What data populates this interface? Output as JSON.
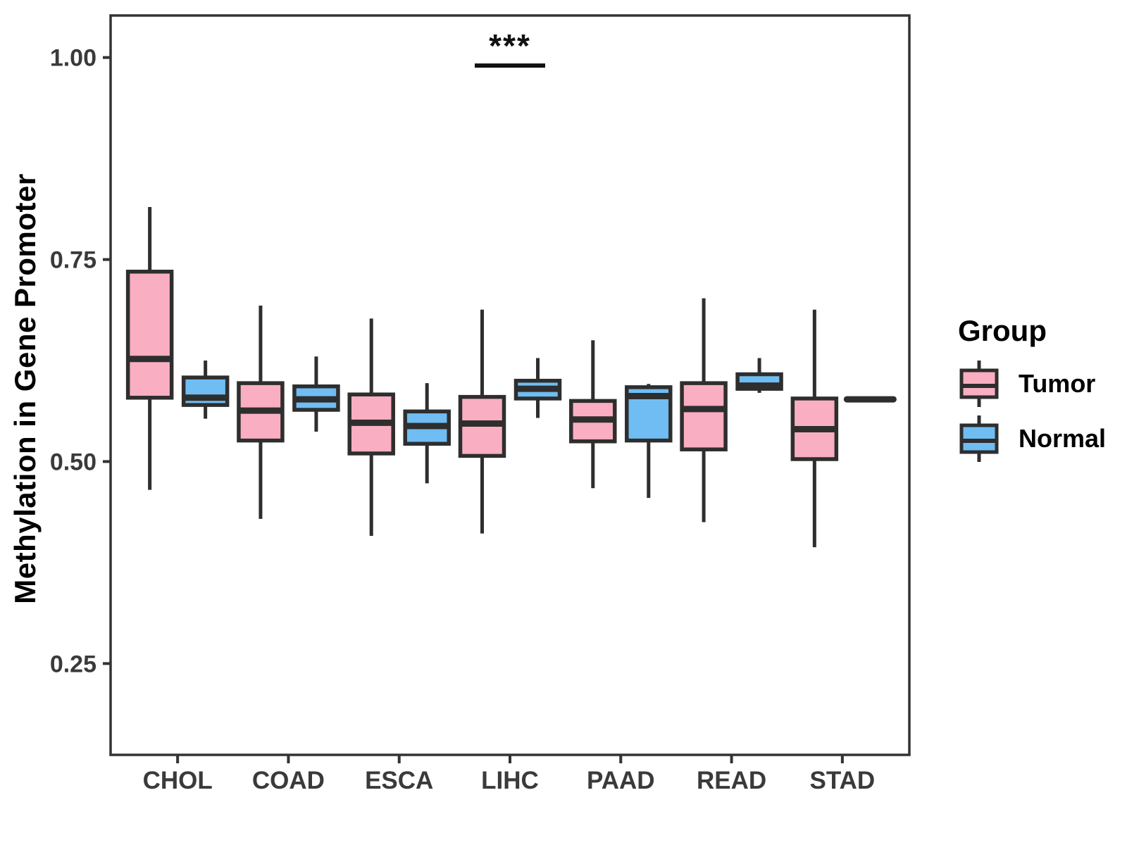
{
  "figure": {
    "background": "#FFFFFF"
  },
  "colors": {
    "tumor_fill": "#F9AFC1",
    "normal_fill": "#6FBDF2",
    "box_stroke": "#2E2E2E",
    "axis_line": "#333333",
    "tick_text": "#3A3A3A",
    "title_text": "#000000",
    "significance": "#111111"
  },
  "legend": {
    "title": "Group",
    "items": [
      {
        "label": "Tumor",
        "color_key": "tumor_fill"
      },
      {
        "label": "Normal",
        "color_key": "normal_fill"
      }
    ]
  },
  "chart_data": {
    "type": "boxplot",
    "title": "",
    "xlabel": "",
    "ylabel": "Methylation in Gene Promoter",
    "categories": [
      "CHOL",
      "COAD",
      "ESCA",
      "LIHC",
      "PAAD",
      "READ",
      "STAD"
    ],
    "y_ticks": [
      0.25,
      0.5,
      0.75,
      1.0
    ],
    "y_tick_labels": [
      "0.25",
      "0.50",
      "0.75",
      "1.00"
    ],
    "ylim": [
      0.137,
      1.052
    ],
    "grid": false,
    "legend_position": "right",
    "series": [
      {
        "name": "Tumor",
        "fill": "#F9AFC1",
        "boxes": [
          {
            "category": "CHOL",
            "min": 0.465,
            "q1": 0.579,
            "median": 0.627,
            "q3": 0.735,
            "max": 0.815
          },
          {
            "category": "COAD",
            "min": 0.429,
            "q1": 0.526,
            "median": 0.563,
            "q3": 0.597,
            "max": 0.693
          },
          {
            "category": "ESCA",
            "min": 0.408,
            "q1": 0.51,
            "median": 0.548,
            "q3": 0.583,
            "max": 0.677
          },
          {
            "category": "LIHC",
            "min": 0.411,
            "q1": 0.507,
            "median": 0.547,
            "q3": 0.58,
            "max": 0.688
          },
          {
            "category": "PAAD",
            "min": 0.467,
            "q1": 0.525,
            "median": 0.552,
            "q3": 0.575,
            "max": 0.65
          },
          {
            "category": "READ",
            "min": 0.425,
            "q1": 0.515,
            "median": 0.565,
            "q3": 0.597,
            "max": 0.702
          },
          {
            "category": "STAD",
            "min": 0.394,
            "q1": 0.503,
            "median": 0.54,
            "q3": 0.578,
            "max": 0.688
          }
        ]
      },
      {
        "name": "Normal",
        "fill": "#6FBDF2",
        "boxes": [
          {
            "category": "CHOL",
            "min": 0.553,
            "q1": 0.57,
            "median": 0.579,
            "q3": 0.604,
            "max": 0.625
          },
          {
            "category": "COAD",
            "min": 0.537,
            "q1": 0.564,
            "median": 0.577,
            "q3": 0.593,
            "max": 0.63
          },
          {
            "category": "ESCA",
            "min": 0.473,
            "q1": 0.522,
            "median": 0.544,
            "q3": 0.562,
            "max": 0.597
          },
          {
            "category": "LIHC",
            "min": 0.554,
            "q1": 0.578,
            "median": 0.59,
            "q3": 0.6,
            "max": 0.628
          },
          {
            "category": "PAAD",
            "min": 0.455,
            "q1": 0.526,
            "median": 0.581,
            "q3": 0.592,
            "max": 0.596
          },
          {
            "category": "READ",
            "min": 0.585,
            "q1": 0.59,
            "median": 0.594,
            "q3": 0.608,
            "max": 0.628
          },
          {
            "category": "STAD",
            "min": 0.577,
            "q1": 0.577,
            "median": 0.577,
            "q3": 0.577,
            "max": 0.577
          }
        ]
      }
    ],
    "significance": {
      "label": "***",
      "category": "LIHC",
      "bar_y": 0.99
    }
  }
}
